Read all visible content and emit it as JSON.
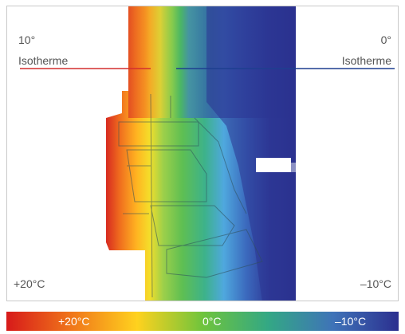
{
  "annotations": {
    "left_line_1": "10°",
    "left_line_2": "Isotherme",
    "right_line_1": "0°",
    "right_line_2": "Isotherme",
    "warm_side": "+20°C",
    "cold_side": "–10°C"
  },
  "color_scale": {
    "labels": [
      "+20°C",
      "0°C",
      "–10°C"
    ],
    "colors": [
      "#d71a1a",
      "#f0761a",
      "#ffd21e",
      "#6fc43c",
      "#33a884",
      "#3f73b8",
      "#2b2f8f"
    ]
  },
  "isotherm_colors": {
    "left": "#d32f2f",
    "right": "#1e3f8f"
  }
}
